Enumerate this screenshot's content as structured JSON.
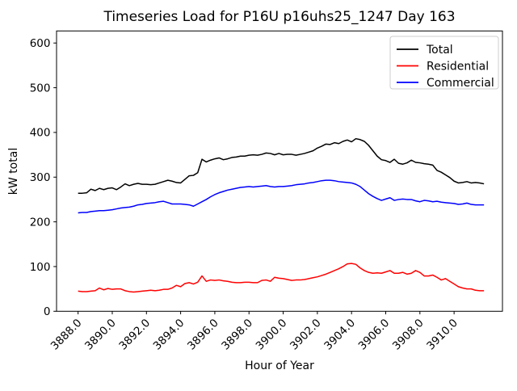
{
  "chart_data": {
    "type": "line",
    "title": "Timeseries Load for P16U p16uhs25_1247  Day 163",
    "xlabel": "Hour of Year",
    "ylabel": "kW total",
    "grid": false,
    "legend_position": "upper right",
    "xlim": [
      3886.74,
      3912.83
    ],
    "ylim": [
      0,
      627
    ],
    "xticks": [
      3888,
      3890,
      3892,
      3894,
      3896,
      3898,
      3900,
      3902,
      3904,
      3906,
      3908,
      3910
    ],
    "xtick_labels": [
      "3888.0",
      "3890.0",
      "3892.0",
      "3894.0",
      "3896.0",
      "3898.0",
      "3900.0",
      "3902.0",
      "3904.0",
      "3906.0",
      "3908.0",
      "3910.0"
    ],
    "yticks": [
      0,
      100,
      200,
      300,
      400,
      500,
      600
    ],
    "ytick_labels": [
      "0",
      "100",
      "200",
      "300",
      "400",
      "500",
      "600"
    ],
    "x_start": 3888.0,
    "x_step": 0.25,
    "n_points": 96,
    "series": [
      {
        "name": "Total",
        "color": "#000000",
        "values": [
          264,
          264,
          265,
          273,
          270,
          275,
          272,
          275,
          276,
          272,
          278,
          285,
          281,
          284,
          286,
          284,
          284,
          283,
          284,
          287,
          290,
          293,
          291,
          288,
          287,
          295,
          303,
          304,
          310,
          340,
          334,
          338,
          341,
          343,
          339,
          341,
          344,
          345,
          347,
          347,
          349,
          350,
          349,
          351,
          354,
          353,
          350,
          353,
          350,
          351,
          351,
          349,
          351,
          353,
          356,
          359,
          365,
          369,
          374,
          373,
          377,
          375,
          380,
          383,
          379,
          386,
          384,
          380,
          371,
          359,
          347,
          339,
          337,
          333,
          340,
          331,
          329,
          332,
          338,
          333,
          332,
          330,
          329,
          327,
          315,
          311,
          305,
          299,
          291,
          287,
          288,
          290,
          287,
          288,
          287,
          285
        ]
      },
      {
        "name": "Residential",
        "color": "#ff0000",
        "values": [
          45,
          44,
          44,
          45,
          46,
          52,
          48,
          51,
          49,
          50,
          50,
          46,
          44,
          43,
          44,
          45,
          46,
          47,
          46,
          47,
          49,
          49,
          52,
          58,
          55,
          62,
          64,
          61,
          65,
          79,
          67,
          70,
          69,
          70,
          68,
          67,
          65,
          64,
          64,
          65,
          65,
          64,
          64,
          69,
          70,
          67,
          76,
          74,
          73,
          71,
          69,
          70,
          70,
          71,
          73,
          75,
          77,
          80,
          83,
          87,
          91,
          95,
          100,
          106,
          107,
          105,
          97,
          91,
          87,
          85,
          86,
          85,
          88,
          91,
          85,
          85,
          87,
          83,
          85,
          91,
          87,
          79,
          79,
          81,
          76,
          70,
          73,
          67,
          61,
          55,
          52,
          50,
          50,
          47,
          46,
          46
        ]
      },
      {
        "name": "Commercial",
        "color": "#0000ff",
        "values": [
          220,
          221,
          221,
          223,
          224,
          225,
          225,
          226,
          227,
          229,
          231,
          232,
          233,
          235,
          238,
          239,
          241,
          242,
          243,
          245,
          246,
          243,
          240,
          240,
          240,
          239,
          238,
          235,
          240,
          245,
          250,
          256,
          261,
          265,
          268,
          271,
          273,
          275,
          277,
          278,
          279,
          278,
          279,
          280,
          281,
          279,
          278,
          279,
          279,
          280,
          281,
          283,
          284,
          285,
          287,
          288,
          290,
          292,
          293,
          293,
          292,
          290,
          289,
          288,
          287,
          284,
          279,
          271,
          263,
          257,
          252,
          248,
          251,
          254,
          248,
          250,
          251,
          250,
          250,
          247,
          245,
          248,
          247,
          245,
          246,
          244,
          243,
          242,
          241,
          239,
          240,
          242,
          239,
          238,
          238,
          238
        ]
      }
    ]
  }
}
